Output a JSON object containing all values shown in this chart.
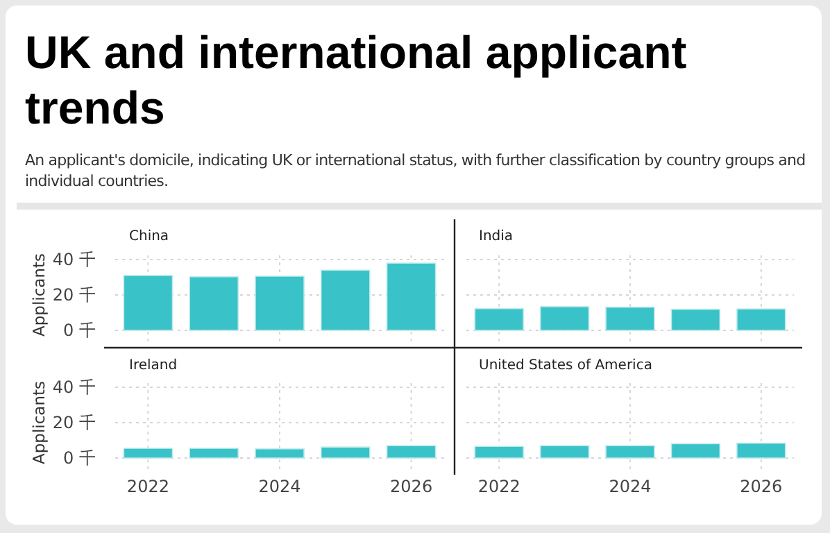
{
  "chart_data": [
    {
      "type": "bar",
      "title": "China",
      "ylabel": "Applicants",
      "x": [
        2022,
        2023,
        2024,
        2025,
        2026
      ],
      "values": [
        31,
        30.3,
        30.6,
        34,
        38
      ],
      "color": "#3ac2c9",
      "xlim": [
        2021.5,
        2026.5
      ],
      "xticks": [
        2022,
        2024,
        2026
      ],
      "ylim": [
        0,
        40
      ],
      "yticks": [
        {
          "value": 0,
          "label": "0 千"
        },
        {
          "value": 20,
          "label": "20 千"
        },
        {
          "value": 40,
          "label": "40 千"
        }
      ],
      "grid": true,
      "tick_labels": "y",
      "annotations": [
        "UK and international applicant trends",
        "An applicant's domicile, indicating UK or international status, with further classification by country groups and individual countries."
      ]
    },
    {
      "type": "bar",
      "title": "India",
      "x": [
        2022,
        2023,
        2024,
        2025,
        2026
      ],
      "values": [
        12.3,
        13.4,
        13.1,
        11.9,
        12.1
      ],
      "color": "#3ac2c9",
      "xlim": [
        2021.5,
        2026.5
      ],
      "xticks": [
        2022,
        2024,
        2026
      ],
      "ylim": [
        0,
        40
      ],
      "yticks": [
        0,
        20,
        40
      ],
      "grid": true,
      "tick_labels": false
    },
    {
      "type": "bar",
      "title": "Ireland",
      "ylabel": "Applicants",
      "x": [
        2022,
        2023,
        2024,
        2025,
        2026
      ],
      "values": [
        5.5,
        5.5,
        5.2,
        6.2,
        7.0
      ],
      "color": "#3ac2c9",
      "xlim": [
        2021.5,
        2026.5
      ],
      "xticks": [
        2022,
        2024,
        2026
      ],
      "ylim": [
        0,
        40
      ],
      "yticks": [
        {
          "value": 0,
          "label": "0 千"
        },
        {
          "value": 20,
          "label": "20 千"
        },
        {
          "value": 40,
          "label": "40 千"
        }
      ],
      "grid": true
    },
    {
      "type": "bar",
      "title": "United States of America",
      "x": [
        2022,
        2023,
        2024,
        2025,
        2026
      ],
      "values": [
        6.6,
        7.0,
        7.0,
        8.1,
        8.4
      ],
      "color": "#3ac2c9",
      "xlim": [
        2021.5,
        2026.5
      ],
      "xticks": [
        2022,
        2024,
        2026
      ],
      "ylim": [
        0,
        40
      ],
      "yticks": [
        0,
        20,
        40
      ],
      "grid": true,
      "tick_labels": "x"
    }
  ]
}
